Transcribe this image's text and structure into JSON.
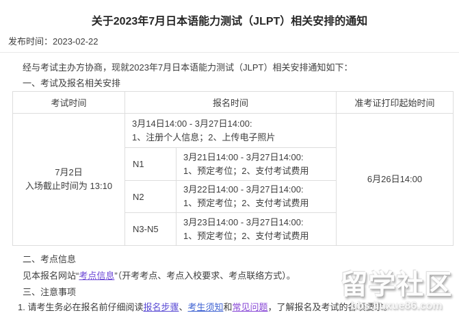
{
  "colors": {
    "link_cite": "#6b46d6",
    "link_steps": "#5a4bd4",
    "link_notice": "#3e62d2",
    "link_faq": "#8746d6",
    "table_border": "#dddddd",
    "body_text": "#3d3d3d"
  },
  "header": {
    "title": "关于2023年7月日本语能力测试（JLPT）相关安排的通知",
    "publish_label": "发布时间：",
    "publish_date": "2023-02-22"
  },
  "body": {
    "intro": "经与考试主办方协商，现就2023年7月日本语能力测试（JLPT）相关安排通知如下：",
    "section1_heading": "一、考试及报名相关安排",
    "section2_heading": "二、考点信息",
    "section2_prefix": "见本报名网站“",
    "section2_link": "考点信息",
    "section2_suffix": "”（开考考点、考点入校要求、考点联络方式）。",
    "section3_heading": "三、注意事项",
    "note1_prefix": "1. 请考生务必在报名前仔细阅读",
    "note1_link_steps": "报名步骤",
    "note1_sep1": "、",
    "note1_link_notice": "考生须知",
    "note1_sep2": "和",
    "note1_link_faq": "常见问题",
    "note1_suffix": "，了解报名及考试的各项要求。"
  },
  "table": {
    "header": {
      "exam_time": "考试时间",
      "registration_time": "报名时间",
      "admission_ticket_print_start": "准考证打印起始时间"
    },
    "exam_time": {
      "line1": "7月2日",
      "line2": "入场截止时间为 13:10"
    },
    "registration_common": {
      "period": "3月14日14:00 - 3月27日14:00:",
      "steps": "1、注册个人信息；2、上传电子照片"
    },
    "levels": [
      {
        "level": "N1",
        "period": "3月21日14:00 - 3月27日14:00:",
        "steps": "1、预定考位；2、支付考试费用"
      },
      {
        "level": "N2",
        "period": "3月22日14:00 - 3月27日14:00:",
        "steps": "1、预定考位；2、支付考试费用"
      },
      {
        "level": "N3-N5",
        "period": "3月23日14:00 - 3月27日14:00:",
        "steps": "1、预定考位；2、支付考试费用"
      }
    ],
    "admission_ticket_value": "6月26日14:00"
  },
  "watermark": {
    "title": "留学社区",
    "url": "bbs.liuxue86.com"
  }
}
